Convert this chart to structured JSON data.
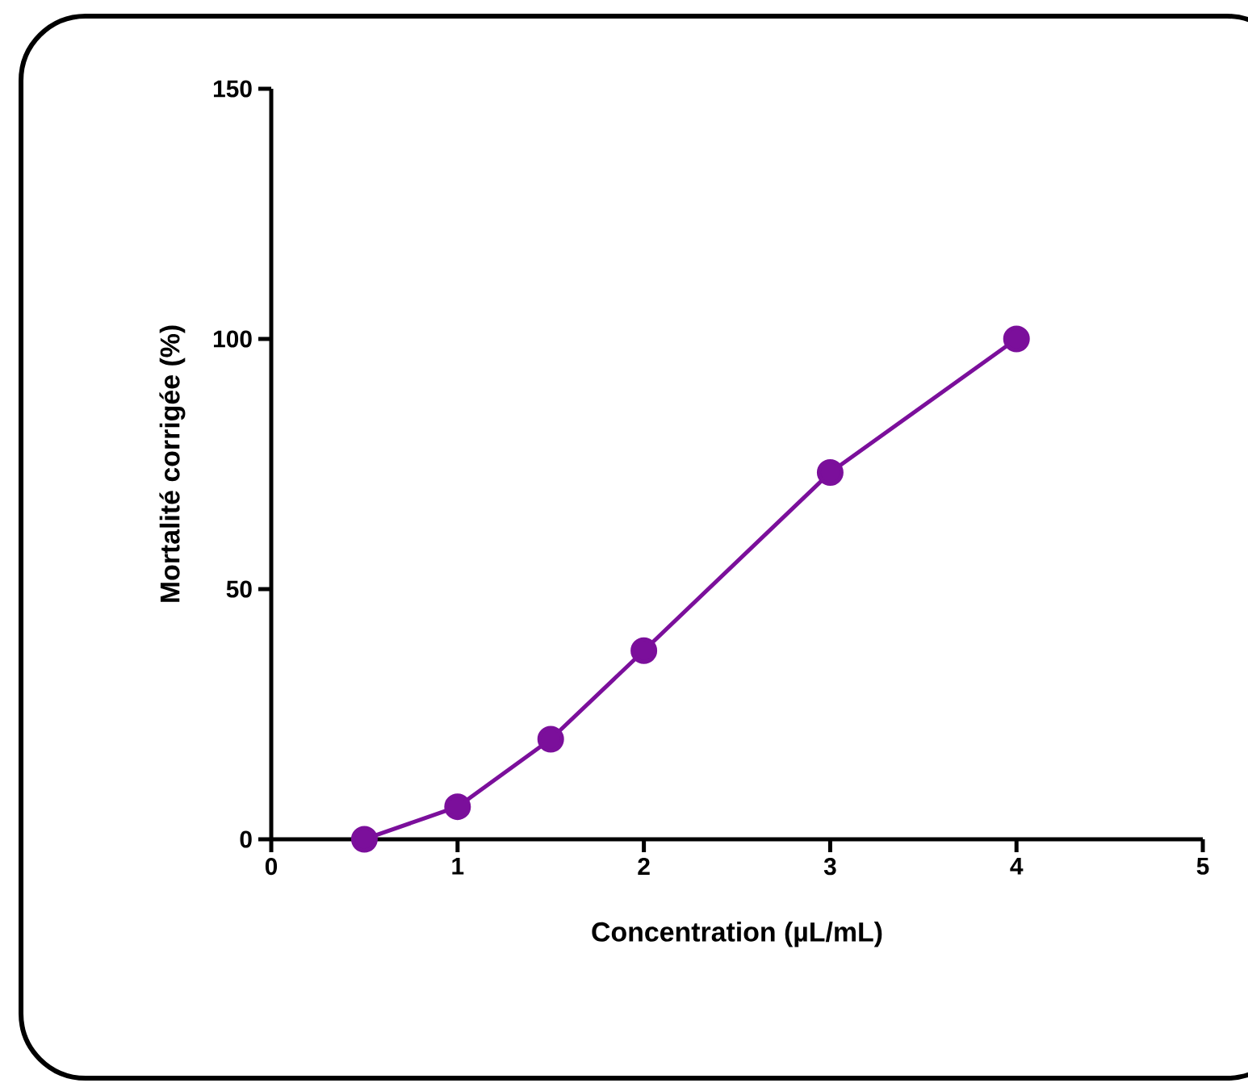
{
  "chart_data": {
    "type": "line",
    "xlabel": "Concentration (µL/mL)",
    "ylabel": "Mortalité corrigée (%)",
    "x": [
      0.5,
      1,
      1.5,
      2,
      3,
      4
    ],
    "series": [
      {
        "color": "#7b0f9b",
        "values": [
          0,
          6.5,
          20,
          37.7,
          73.3,
          100
        ]
      }
    ],
    "xlim": [
      0,
      5
    ],
    "xticks": [
      0,
      1,
      2,
      3,
      4,
      5
    ],
    "ylim": [
      0,
      150
    ],
    "yticks": [
      0,
      50,
      100,
      150
    ],
    "marker": "circle",
    "line_style": "solid"
  }
}
